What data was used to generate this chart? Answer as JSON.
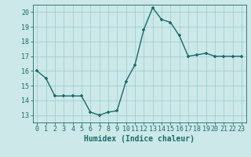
{
  "x": [
    0,
    1,
    2,
    3,
    4,
    5,
    6,
    7,
    8,
    9,
    10,
    11,
    12,
    13,
    14,
    15,
    16,
    17,
    18,
    19,
    20,
    21,
    22,
    23
  ],
  "y": [
    16.0,
    15.5,
    14.3,
    14.3,
    14.3,
    14.3,
    13.2,
    13.0,
    13.2,
    13.3,
    15.3,
    16.4,
    18.8,
    20.3,
    19.5,
    19.3,
    18.4,
    17.0,
    17.1,
    17.2,
    17.0,
    17.0,
    17.0,
    17.0
  ],
  "line_color": "#1a6b6b",
  "marker_color": "#1a6b6b",
  "bg_color": "#cce8e8",
  "grid_color": "#99cccc",
  "xlabel": "Humidex (Indice chaleur)",
  "xlim": [
    -0.5,
    23.5
  ],
  "ylim": [
    12.5,
    20.5
  ],
  "yticks": [
    13,
    14,
    15,
    16,
    17,
    18,
    19,
    20
  ],
  "xticks": [
    0,
    1,
    2,
    3,
    4,
    5,
    6,
    7,
    8,
    9,
    10,
    11,
    12,
    13,
    14,
    15,
    16,
    17,
    18,
    19,
    20,
    21,
    22,
    23
  ],
  "xtick_labels": [
    "0",
    "1",
    "2",
    "3",
    "4",
    "5",
    "6",
    "7",
    "8",
    "9",
    "10",
    "11",
    "12",
    "13",
    "14",
    "15",
    "16",
    "17",
    "18",
    "19",
    "20",
    "21",
    "22",
    "23"
  ],
  "xlabel_fontsize": 7,
  "tick_fontsize": 6
}
